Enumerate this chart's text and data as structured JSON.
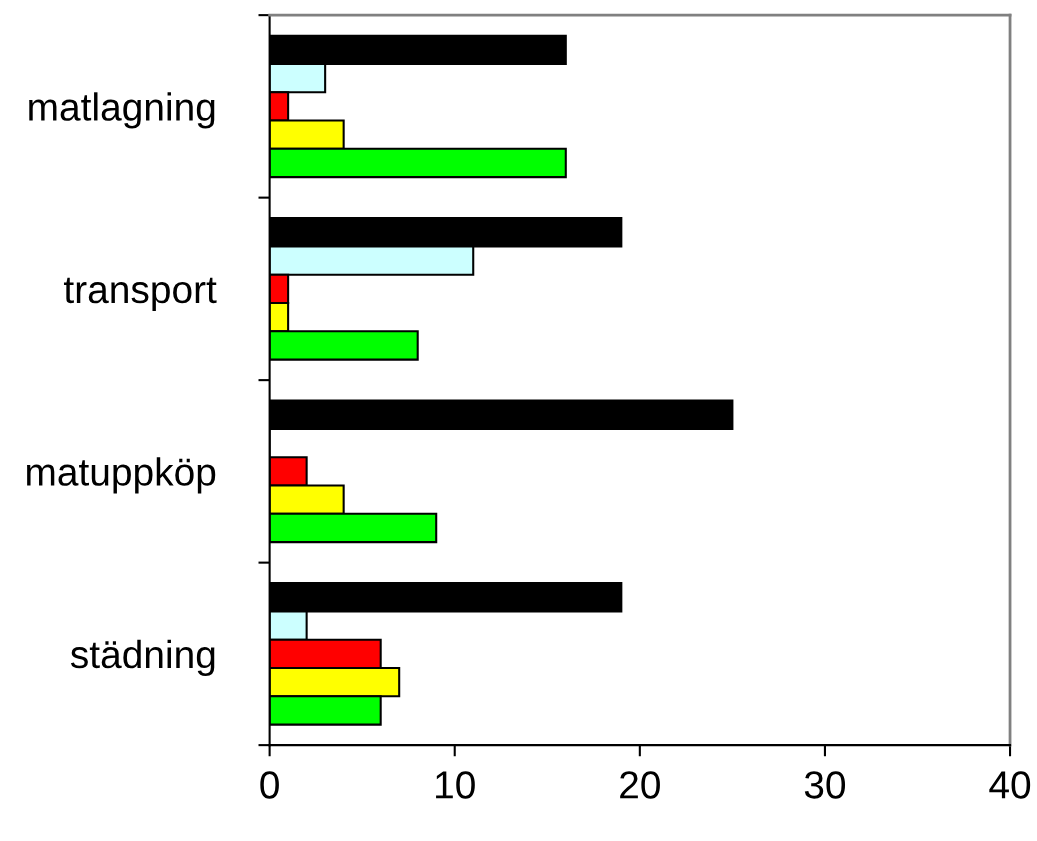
{
  "chart_data": {
    "type": "bar",
    "orientation": "horizontal",
    "categories": [
      "matlagning",
      "transport",
      "matuppköp",
      "städning"
    ],
    "series": [
      {
        "color": "#000000",
        "values": [
          16,
          19,
          25,
          19
        ]
      },
      {
        "color": "#ccffff",
        "values": [
          3,
          11,
          0,
          2
        ]
      },
      {
        "color": "#ff0000",
        "values": [
          1,
          1,
          2,
          6
        ]
      },
      {
        "color": "#ffff00",
        "values": [
          4,
          1,
          4,
          7
        ]
      },
      {
        "color": "#00ff00",
        "values": [
          16,
          8,
          9,
          6
        ]
      }
    ],
    "xlim": [
      0,
      40
    ],
    "xticks": [
      0,
      10,
      20,
      30,
      40
    ],
    "grid": false,
    "legend": false
  }
}
